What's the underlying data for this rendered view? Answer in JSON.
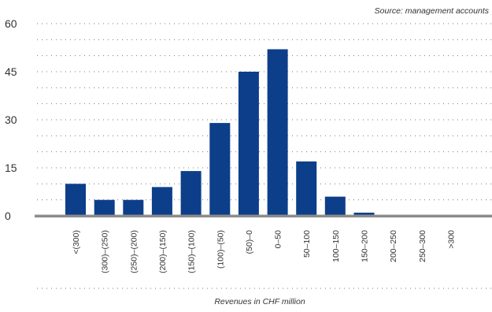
{
  "chart_data": {
    "type": "bar",
    "title": "",
    "source": "Source: management accounts",
    "xlabel": "Revenues in CHF million",
    "ylabel": "",
    "categories": [
      "<(300)",
      "(300)–(250)",
      "(250)–(200)",
      "(200)–(150)",
      "(150)–(100)",
      "(100)–(50)",
      "(50)–0",
      "0–50",
      "50–100",
      "100–150",
      "150–200",
      "200–250",
      "250–300",
      ">300"
    ],
    "values": [
      10,
      5,
      5,
      9,
      14,
      29,
      45,
      52,
      17,
      6,
      1,
      0,
      0,
      0
    ],
    "yticks": [
      "0",
      "15",
      "30",
      "45",
      "60"
    ],
    "ylim": [
      0,
      60
    ],
    "grid": true,
    "legend": "none",
    "colors": {
      "bar": "#0d3e8a",
      "baseline": "#8c8c8c",
      "grid": "#7a7a7a",
      "text": "#333333"
    }
  }
}
